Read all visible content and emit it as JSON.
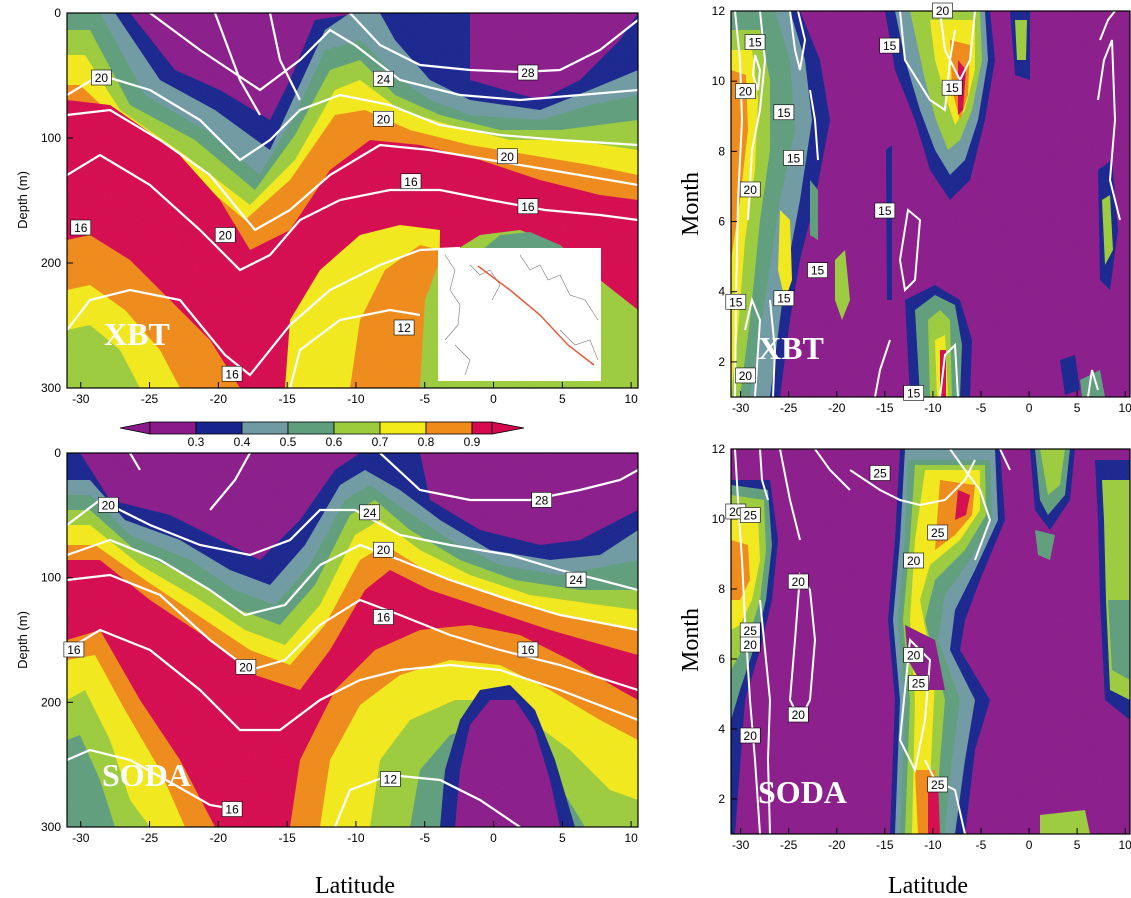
{
  "palette": [
    "#8a1a8a",
    "#17248e",
    "#6f9aa3",
    "#5f9e7c",
    "#9ccc3c",
    "#f3ea1a",
    "#f08a18",
    "#d6094e"
  ],
  "panels": [
    {
      "id": "xbt_depth",
      "tag": "XBT",
      "ylabel": "Depth (m)",
      "xticks": [
        "-30",
        "-25",
        "-20",
        "-15",
        "-10",
        "-5",
        "0",
        "5",
        "10"
      ],
      "yticks": [
        "0",
        "100",
        "200",
        "300"
      ]
    },
    {
      "id": "xbt_month",
      "tag": "XBT",
      "ylabel": "Month",
      "xticks": [
        "-30",
        "-25",
        "-20",
        "-15",
        "-10",
        "-5",
        "0",
        "5",
        "10"
      ],
      "yticks": [
        "2",
        "4",
        "6",
        "8",
        "10",
        "12"
      ]
    },
    {
      "id": "soda_depth",
      "tag": "SODA",
      "ylabel": "Depth (m)",
      "xticks": [
        "-30",
        "-25",
        "-20",
        "-15",
        "-10",
        "-5",
        "0",
        "5",
        "10"
      ],
      "yticks": [
        "0",
        "100",
        "200",
        "300"
      ]
    },
    {
      "id": "soda_month",
      "tag": "SODA",
      "ylabel": "Month",
      "xticks": [
        "-30",
        "-25",
        "-20",
        "-15",
        "-10",
        "-5",
        "0",
        "5",
        "10"
      ],
      "yticks": [
        "2",
        "4",
        "6",
        "8",
        "10",
        "12"
      ]
    }
  ],
  "xlabel_left": "Latitude",
  "xlabel_right": "Latitude",
  "colorbar": {
    "ticks": [
      "0.3",
      "0.4",
      "0.5",
      "0.6",
      "0.7",
      "0.8",
      "0.9"
    ]
  },
  "chart_data": [
    {
      "type": "heatmap",
      "panel": "XBT depth-latitude",
      "xlim": [
        -31,
        10.5
      ],
      "ylim": [
        300,
        0
      ],
      "ylabel": "Depth (m)",
      "contour_labels": [
        {
          "text": "28",
          "x": 2.5,
          "y": 48
        },
        {
          "text": "24",
          "x": -8,
          "y": 53
        },
        {
          "text": "20",
          "x": -28.5,
          "y": 52
        },
        {
          "text": "20",
          "x": -8,
          "y": 85
        },
        {
          "text": "20",
          "x": 1,
          "y": 115
        },
        {
          "text": "16",
          "x": -6,
          "y": 135
        },
        {
          "text": "16",
          "x": 2.5,
          "y": 155
        },
        {
          "text": "20",
          "x": -19.5,
          "y": 178
        },
        {
          "text": "16",
          "x": -30,
          "y": 172
        },
        {
          "text": "12",
          "x": -6.5,
          "y": 252
        },
        {
          "text": "16",
          "x": -19,
          "y": 289
        }
      ],
      "inset": "map with ship track"
    },
    {
      "type": "heatmap",
      "panel": "XBT month-latitude",
      "xlim": [
        -31,
        10.5
      ],
      "ylim": [
        1,
        12
      ],
      "ylabel": "Month",
      "contour_labels": [
        {
          "text": "20",
          "x": -9,
          "y": 12
        },
        {
          "text": "15",
          "x": -28.5,
          "y": 11.1
        },
        {
          "text": "15",
          "x": -14.5,
          "y": 11
        },
        {
          "text": "20",
          "x": -29.5,
          "y": 9.7
        },
        {
          "text": "15",
          "x": -8,
          "y": 9.8
        },
        {
          "text": "15",
          "x": -25.5,
          "y": 9.1
        },
        {
          "text": "15",
          "x": -24.5,
          "y": 7.8
        },
        {
          "text": "20",
          "x": -29,
          "y": 6.9
        },
        {
          "text": "15",
          "x": -15,
          "y": 6.3
        },
        {
          "text": "15",
          "x": -22,
          "y": 4.6
        },
        {
          "text": "15",
          "x": -30.5,
          "y": 3.7
        },
        {
          "text": "15",
          "x": -25.5,
          "y": 3.8
        },
        {
          "text": "20",
          "x": -29.5,
          "y": 1.6
        },
        {
          "text": "15",
          "x": -12,
          "y": 1.1
        }
      ]
    },
    {
      "type": "heatmap",
      "panel": "SODA depth-latitude",
      "xlim": [
        -31,
        10.5
      ],
      "ylim": [
        300,
        0
      ],
      "ylabel": "Depth (m)",
      "contour_labels": [
        {
          "text": "28",
          "x": 3.5,
          "y": 38
        },
        {
          "text": "20",
          "x": -28,
          "y": 42
        },
        {
          "text": "24",
          "x": -9,
          "y": 48
        },
        {
          "text": "20",
          "x": -8,
          "y": 78
        },
        {
          "text": "24",
          "x": 6,
          "y": 102
        },
        {
          "text": "16",
          "x": -8,
          "y": 132
        },
        {
          "text": "16",
          "x": 2.5,
          "y": 158
        },
        {
          "text": "20",
          "x": -18,
          "y": 172
        },
        {
          "text": "16",
          "x": -30.5,
          "y": 158
        },
        {
          "text": "12",
          "x": -7.5,
          "y": 262
        },
        {
          "text": "16",
          "x": -19,
          "y": 286
        }
      ]
    },
    {
      "type": "heatmap",
      "panel": "SODA month-latitude",
      "xlim": [
        -31,
        10.5
      ],
      "ylim": [
        1,
        12
      ],
      "ylabel": "Month",
      "contour_labels": [
        {
          "text": "25",
          "x": -15.5,
          "y": 11.3
        },
        {
          "text": "20",
          "x": -30.5,
          "y": 10.2
        },
        {
          "text": "25",
          "x": -29,
          "y": 10.1
        },
        {
          "text": "25",
          "x": -9.5,
          "y": 9.6
        },
        {
          "text": "20",
          "x": -12,
          "y": 8.8
        },
        {
          "text": "20",
          "x": -24,
          "y": 8.2
        },
        {
          "text": "25",
          "x": -29,
          "y": 6.8
        },
        {
          "text": "20",
          "x": -29,
          "y": 6.4
        },
        {
          "text": "20",
          "x": -12,
          "y": 6.1
        },
        {
          "text": "25",
          "x": -11.5,
          "y": 5.3
        },
        {
          "text": "20",
          "x": -24,
          "y": 4.4
        },
        {
          "text": "20",
          "x": -29,
          "y": 3.8
        },
        {
          "text": "25",
          "x": -9.5,
          "y": 2.4
        }
      ]
    }
  ]
}
